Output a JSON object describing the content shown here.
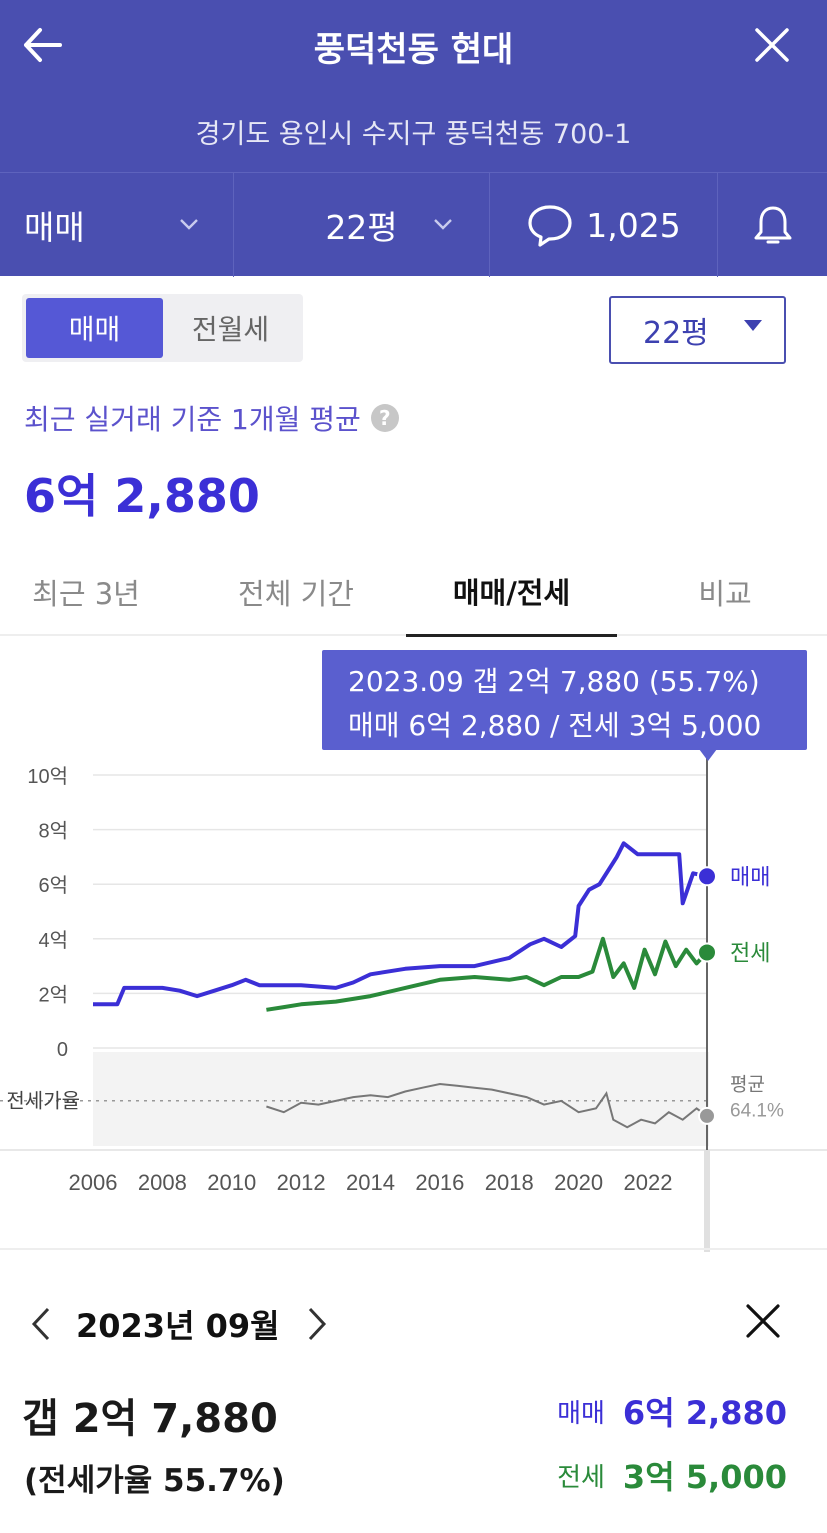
{
  "header": {
    "title": "풍덕천동 현대",
    "address": "경기도 용인시 수지구 풍덕천동 700-1"
  },
  "toolbar": {
    "deal_type": "매매",
    "size": "22평",
    "comment_count": "1,025"
  },
  "segment": {
    "sale": "매매",
    "rent": "전월세",
    "size_select": "22평"
  },
  "summary": {
    "label": "최근 실거래 기준 1개월 평균",
    "help": "?",
    "value": "6억 2,880"
  },
  "tabs": [
    {
      "label": "최근 3년"
    },
    {
      "label": "전체 기간"
    },
    {
      "label": "매매/전세"
    },
    {
      "label": "비교"
    }
  ],
  "tooltip": {
    "line1": "2023.09  갭 2억 7,880 (55.7%)",
    "line2": "매매 6억 2,880 / 전세 3억 5,000"
  },
  "chart_data": {
    "type": "line",
    "x_unit": "year",
    "xlim": [
      2006,
      2023.7
    ],
    "ylim": [
      0,
      10
    ],
    "y_ticks": [
      "10억",
      "8억",
      "6억",
      "4억",
      "2억",
      "0"
    ],
    "y_tick_values": [
      10,
      8,
      6,
      4,
      2,
      0
    ],
    "x_ticks": [
      "2006",
      "2008",
      "2010",
      "2012",
      "2014",
      "2016",
      "2018",
      "2020",
      "2022"
    ],
    "x_tick_values": [
      2006,
      2008,
      2010,
      2012,
      2014,
      2016,
      2018,
      2020,
      2022
    ],
    "series": [
      {
        "name": "매매",
        "color": "#3b2fd6",
        "points": [
          [
            2006.0,
            1.6
          ],
          [
            2006.7,
            1.6
          ],
          [
            2006.9,
            2.2
          ],
          [
            2007.5,
            2.2
          ],
          [
            2008.0,
            2.2
          ],
          [
            2008.5,
            2.1
          ],
          [
            2009.0,
            1.9
          ],
          [
            2009.5,
            2.1
          ],
          [
            2010.0,
            2.3
          ],
          [
            2010.4,
            2.5
          ],
          [
            2010.8,
            2.3
          ],
          [
            2011.2,
            2.3
          ],
          [
            2012.0,
            2.3
          ],
          [
            2013.0,
            2.2
          ],
          [
            2013.5,
            2.4
          ],
          [
            2014.0,
            2.7
          ],
          [
            2015.0,
            2.9
          ],
          [
            2016.0,
            3.0
          ],
          [
            2017.0,
            3.0
          ],
          [
            2018.0,
            3.3
          ],
          [
            2018.6,
            3.8
          ],
          [
            2019.0,
            4.0
          ],
          [
            2019.5,
            3.7
          ],
          [
            2019.9,
            4.1
          ],
          [
            2020.0,
            5.2
          ],
          [
            2020.3,
            5.8
          ],
          [
            2020.6,
            6.0
          ],
          [
            2020.9,
            6.6
          ],
          [
            2021.1,
            7.0
          ],
          [
            2021.3,
            7.5
          ],
          [
            2021.7,
            7.1
          ],
          [
            2022.5,
            7.1
          ],
          [
            2022.9,
            7.1
          ],
          [
            2023.0,
            5.3
          ],
          [
            2023.3,
            6.4
          ],
          [
            2023.7,
            6.29
          ]
        ]
      },
      {
        "name": "전세",
        "color": "#2a8a3a",
        "points": [
          [
            2011.0,
            1.4
          ],
          [
            2011.5,
            1.5
          ],
          [
            2012.0,
            1.6
          ],
          [
            2013.0,
            1.7
          ],
          [
            2014.0,
            1.9
          ],
          [
            2015.0,
            2.2
          ],
          [
            2016.0,
            2.5
          ],
          [
            2017.0,
            2.6
          ],
          [
            2018.0,
            2.5
          ],
          [
            2018.5,
            2.6
          ],
          [
            2019.0,
            2.3
          ],
          [
            2019.5,
            2.6
          ],
          [
            2020.0,
            2.6
          ],
          [
            2020.4,
            2.8
          ],
          [
            2020.7,
            4.0
          ],
          [
            2021.0,
            2.6
          ],
          [
            2021.3,
            3.1
          ],
          [
            2021.6,
            2.2
          ],
          [
            2021.9,
            3.6
          ],
          [
            2022.2,
            2.7
          ],
          [
            2022.5,
            3.9
          ],
          [
            2022.8,
            3.0
          ],
          [
            2023.1,
            3.6
          ],
          [
            2023.4,
            3.1
          ],
          [
            2023.7,
            3.5
          ]
        ]
      }
    ],
    "series_labels": [
      "매매",
      "전세"
    ],
    "ratio": {
      "label": "전세가율",
      "avg_label": "평균",
      "avg_value": "64.1%",
      "avg": 64.1,
      "ylim": [
        40,
        90
      ],
      "points": [
        [
          2011.0,
          61
        ],
        [
          2011.5,
          58
        ],
        [
          2012.0,
          63
        ],
        [
          2012.5,
          62
        ],
        [
          2013.0,
          64
        ],
        [
          2013.5,
          66
        ],
        [
          2014.0,
          67
        ],
        [
          2014.5,
          66
        ],
        [
          2015.0,
          69
        ],
        [
          2015.5,
          71
        ],
        [
          2016.0,
          73
        ],
        [
          2016.5,
          72
        ],
        [
          2017.0,
          71
        ],
        [
          2017.5,
          70
        ],
        [
          2018.0,
          68
        ],
        [
          2018.5,
          66
        ],
        [
          2019.0,
          62
        ],
        [
          2019.5,
          64
        ],
        [
          2020.0,
          58
        ],
        [
          2020.5,
          60
        ],
        [
          2020.8,
          68
        ],
        [
          2021.0,
          54
        ],
        [
          2021.4,
          50
        ],
        [
          2021.8,
          54
        ],
        [
          2022.2,
          52
        ],
        [
          2022.6,
          58
        ],
        [
          2023.0,
          54
        ],
        [
          2023.4,
          60
        ],
        [
          2023.7,
          56
        ]
      ]
    },
    "cursor_x": 2023.7,
    "grid": true
  },
  "detail": {
    "month": "2023년 09월",
    "gap": "갭 2억 7,880",
    "ratio": "(전세가율 55.7%)",
    "sale_label": "매매",
    "sale_value": "6억 2,880",
    "rent_label": "전세",
    "rent_value": "3억 5,000"
  },
  "colors": {
    "header_bg": "#4a4fb0",
    "sale": "#3b2fd6",
    "rent": "#2a8a3a",
    "tooltip_bg": "#5a5fcf"
  }
}
